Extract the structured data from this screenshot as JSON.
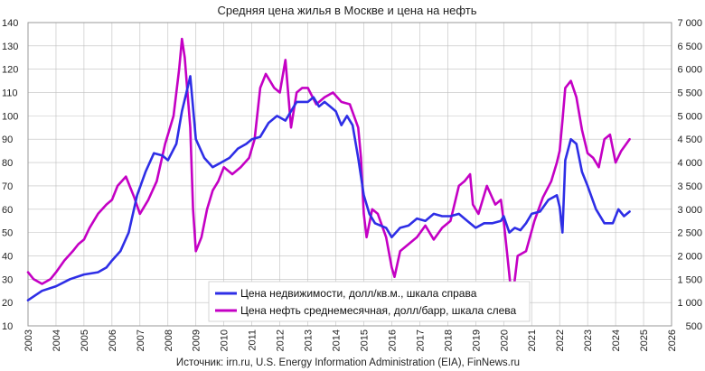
{
  "chart_data": {
    "type": "line",
    "title": "Средняя цена жилья в Москве и цена на нефть",
    "source": "Источник: irn.ru, U.S. Energy Information Administration (EIA), FinNews.ru",
    "x_ticks": [
      "2003",
      "2004",
      "2005",
      "2006",
      "2007",
      "2008",
      "2009",
      "2010",
      "2011",
      "2012",
      "2013",
      "2014",
      "2015",
      "2016",
      "2017",
      "2018",
      "2019",
      "2020",
      "2021",
      "2022",
      "2023",
      "2024",
      "2025",
      "2026"
    ],
    "xlim": [
      2003,
      2026
    ],
    "y_left_ticks": [
      "10",
      "20",
      "30",
      "40",
      "50",
      "60",
      "70",
      "80",
      "90",
      "100",
      "110",
      "120",
      "130",
      "140"
    ],
    "ylim_left": [
      10,
      140
    ],
    "y_right_ticks": [
      "500",
      "1 000",
      "1 500",
      "2 000",
      "2 500",
      "3 000",
      "3 500",
      "4 000",
      "4 500",
      "5 000",
      "5 500",
      "6 000",
      "6 500",
      "7 000"
    ],
    "ylim_right": [
      500,
      7000
    ],
    "grid": true,
    "legend_position": "bottom-center",
    "colors": {
      "realty": "#2e2ee6",
      "oil": "#c400c4",
      "grid": "#bfbfbf"
    },
    "series": [
      {
        "name": "Цена недвижимости, долл/кв.м., шкала справа",
        "axis": "right",
        "x": [
          2003.0,
          2003.5,
          2004.0,
          2004.5,
          2005.0,
          2005.5,
          2005.8,
          2006.0,
          2006.3,
          2006.6,
          2006.9,
          2007.2,
          2007.5,
          2007.8,
          2008.0,
          2008.3,
          2008.5,
          2008.7,
          2008.8,
          2009.0,
          2009.3,
          2009.6,
          2009.9,
          2010.2,
          2010.5,
          2010.8,
          2011.0,
          2011.3,
          2011.6,
          2011.9,
          2012.2,
          2012.4,
          2012.6,
          2012.8,
          2013.0,
          2013.2,
          2013.4,
          2013.6,
          2013.8,
          2014.0,
          2014.2,
          2014.4,
          2014.6,
          2014.8,
          2015.0,
          2015.2,
          2015.4,
          2015.6,
          2015.8,
          2016.0,
          2016.3,
          2016.6,
          2016.9,
          2017.2,
          2017.5,
          2017.8,
          2018.1,
          2018.4,
          2018.7,
          2019.0,
          2019.3,
          2019.6,
          2019.9,
          2020.0,
          2020.2,
          2020.4,
          2020.6,
          2020.8,
          2021.0,
          2021.3,
          2021.6,
          2021.9,
          2022.0,
          2022.1,
          2022.2,
          2022.4,
          2022.6,
          2022.8,
          2023.0,
          2023.3,
          2023.6,
          2023.9,
          2024.1,
          2024.3,
          2024.5
        ],
        "values": [
          1050,
          1250,
          1350,
          1500,
          1600,
          1650,
          1750,
          1900,
          2100,
          2500,
          3300,
          3800,
          4200,
          4150,
          4050,
          4400,
          5100,
          5600,
          5850,
          4500,
          4100,
          3900,
          4000,
          4100,
          4300,
          4400,
          4500,
          4550,
          4850,
          5000,
          4900,
          5100,
          5300,
          5300,
          5300,
          5400,
          5200,
          5300,
          5200,
          5100,
          4800,
          5000,
          4800,
          4100,
          3300,
          2900,
          2700,
          2650,
          2600,
          2400,
          2600,
          2650,
          2800,
          2750,
          2900,
          2850,
          2850,
          2900,
          2750,
          2600,
          2700,
          2700,
          2750,
          2850,
          2500,
          2600,
          2550,
          2700,
          2900,
          2950,
          3200,
          3300,
          3050,
          2500,
          4050,
          4500,
          4400,
          3800,
          3500,
          3000,
          2700,
          2700,
          3000,
          2850,
          2950
        ]
      },
      {
        "name": "Цена нефть  среднемесячная, долл/барр, шкала слева",
        "axis": "left",
        "x": [
          2003.0,
          2003.2,
          2003.5,
          2003.8,
          2004.0,
          2004.3,
          2004.6,
          2004.8,
          2005.0,
          2005.2,
          2005.5,
          2005.8,
          2006.0,
          2006.2,
          2006.5,
          2006.8,
          2007.0,
          2007.3,
          2007.6,
          2007.9,
          2008.0,
          2008.2,
          2008.4,
          2008.5,
          2008.6,
          2008.8,
          2008.9,
          2009.0,
          2009.2,
          2009.4,
          2009.6,
          2009.8,
          2010.0,
          2010.3,
          2010.6,
          2010.9,
          2011.1,
          2011.3,
          2011.5,
          2011.8,
          2012.0,
          2012.2,
          2012.4,
          2012.6,
          2012.8,
          2013.0,
          2013.3,
          2013.6,
          2013.9,
          2014.2,
          2014.5,
          2014.8,
          2014.9,
          2015.0,
          2015.1,
          2015.3,
          2015.5,
          2015.8,
          2016.0,
          2016.1,
          2016.3,
          2016.6,
          2016.9,
          2017.2,
          2017.5,
          2017.8,
          2018.1,
          2018.4,
          2018.6,
          2018.8,
          2018.9,
          2019.1,
          2019.4,
          2019.7,
          2019.9,
          2020.0,
          2020.2,
          2020.3,
          2020.5,
          2020.8,
          2021.1,
          2021.4,
          2021.7,
          2021.9,
          2022.0,
          2022.1,
          2022.2,
          2022.4,
          2022.6,
          2022.8,
          2023.0,
          2023.2,
          2023.4,
          2023.6,
          2023.8,
          2024.0,
          2024.2,
          2024.5
        ],
        "values": [
          33,
          30,
          28,
          30,
          33,
          38,
          42,
          45,
          47,
          52,
          58,
          62,
          64,
          70,
          74,
          65,
          58,
          64,
          72,
          88,
          92,
          100,
          120,
          133,
          125,
          95,
          60,
          42,
          48,
          60,
          68,
          72,
          78,
          75,
          78,
          82,
          90,
          112,
          118,
          112,
          110,
          124,
          95,
          110,
          112,
          112,
          105,
          108,
          110,
          106,
          105,
          95,
          82,
          58,
          48,
          60,
          58,
          48,
          35,
          31,
          42,
          45,
          48,
          53,
          47,
          52,
          55,
          70,
          72,
          75,
          62,
          58,
          70,
          62,
          64,
          55,
          32,
          20,
          40,
          42,
          55,
          65,
          72,
          80,
          85,
          98,
          112,
          115,
          108,
          94,
          84,
          82,
          78,
          90,
          92,
          80,
          85,
          90
        ]
      }
    ]
  }
}
